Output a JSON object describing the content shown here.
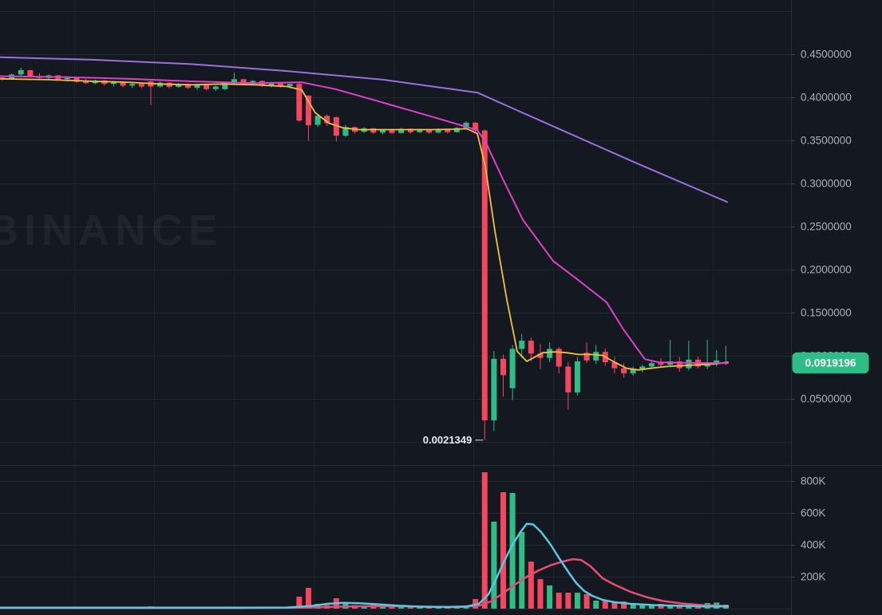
{
  "watermark": "BINANCE",
  "price_scale": {
    "labels": [
      {
        "text": "0.4500000",
        "value": 0.45
      },
      {
        "text": "0.4000000",
        "value": 0.4
      },
      {
        "text": "0.3500000",
        "value": 0.35
      },
      {
        "text": "0.3000000",
        "value": 0.3
      },
      {
        "text": "0.2500000",
        "value": 0.25
      },
      {
        "text": "0.2000000",
        "value": 0.2
      },
      {
        "text": "0.1500000",
        "value": 0.15
      },
      {
        "text": "0.1000000",
        "value": 0.1
      },
      {
        "text": "0.0500000",
        "value": 0.05
      }
    ],
    "current_price_badge": {
      "text": "0.0919196",
      "value": 0.0919196,
      "color": "#2EBD85",
      "text_color": "#FFFFFF"
    }
  },
  "volume_scale": {
    "labels": [
      {
        "text": "800K",
        "value": 800
      },
      {
        "text": "600K",
        "value": 600
      },
      {
        "text": "400K",
        "value": 400
      },
      {
        "text": "200K",
        "value": 200
      }
    ]
  },
  "annotations": {
    "low_label": {
      "text": "0.0021349",
      "value": 0.0021349,
      "candle_index": 52
    }
  },
  "colors": {
    "background": "#141821",
    "grid_vertical": "#1b212b",
    "grid_horizontal": "#1e2832",
    "pane_border": "#2a2f3a",
    "tick": "#3a4150",
    "up": "#2EBD85",
    "down": "#F6465D",
    "ma_fast_yellow": "#EFC13D",
    "ma_mid_magenta": "#E03FC8",
    "ma_slow_purple": "#9C6FDE",
    "vol_ma_fast_cyan": "#58C7E3",
    "vol_ma_slow_rose": "#E94D72",
    "badge": "#2EBD85",
    "label_text": "#aab0bc"
  },
  "chart_data": {
    "type": "candlestick_with_volume",
    "title": "",
    "price_axis_visible_range": [
      0.0,
      0.5
    ],
    "volume_axis_visible_range_k": [
      0,
      900
    ],
    "legend_position": "none",
    "grid": true,
    "gridlines": {
      "vertical_x": [
        93,
        193,
        293,
        393,
        493,
        593,
        693,
        793,
        893
      ],
      "horizontal_prices": [
        0.5,
        0.45,
        0.4,
        0.35,
        0.3,
        0.25,
        0.2,
        0.15,
        0.1,
        0.05,
        0.0
      ],
      "volume_levels_k": [
        800,
        600,
        400,
        200
      ]
    },
    "candles_format": [
      "open",
      "high",
      "low",
      "close",
      "volume_k"
    ],
    "candles": [
      [
        0.423,
        0.4255,
        0.4195,
        0.4215,
        10
      ],
      [
        0.4215,
        0.4275,
        0.4205,
        0.4265,
        8
      ],
      [
        0.4265,
        0.4345,
        0.425,
        0.4315,
        9
      ],
      [
        0.4315,
        0.432,
        0.4235,
        0.4245,
        8
      ],
      [
        0.4245,
        0.428,
        0.4215,
        0.4225,
        6
      ],
      [
        0.4225,
        0.4265,
        0.4205,
        0.4255,
        7
      ],
      [
        0.4255,
        0.426,
        0.4195,
        0.421,
        6
      ],
      [
        0.421,
        0.4245,
        0.4185,
        0.4235,
        6
      ],
      [
        0.4235,
        0.424,
        0.4165,
        0.418,
        8
      ],
      [
        0.418,
        0.4215,
        0.4155,
        0.4165,
        6
      ],
      [
        0.4165,
        0.4205,
        0.415,
        0.4195,
        6
      ],
      [
        0.4195,
        0.42,
        0.4135,
        0.4155,
        7
      ],
      [
        0.4155,
        0.419,
        0.4125,
        0.4175,
        6
      ],
      [
        0.4175,
        0.418,
        0.4115,
        0.4135,
        6
      ],
      [
        0.4135,
        0.417,
        0.411,
        0.4155,
        5
      ],
      [
        0.4155,
        0.4165,
        0.4105,
        0.4125,
        6
      ],
      [
        0.4185,
        0.419,
        0.391,
        0.4125,
        14
      ],
      [
        0.4125,
        0.4185,
        0.4115,
        0.417,
        6
      ],
      [
        0.417,
        0.4175,
        0.4105,
        0.412,
        5
      ],
      [
        0.412,
        0.4165,
        0.411,
        0.4155,
        5
      ],
      [
        0.4155,
        0.416,
        0.4095,
        0.411,
        6
      ],
      [
        0.411,
        0.4155,
        0.4085,
        0.4145,
        5
      ],
      [
        0.4145,
        0.415,
        0.408,
        0.4095,
        5
      ],
      [
        0.4095,
        0.4135,
        0.4075,
        0.4125,
        5
      ],
      [
        0.4095,
        0.4185,
        0.4085,
        0.4165,
        7
      ],
      [
        0.4165,
        0.4285,
        0.4145,
        0.421,
        9
      ],
      [
        0.421,
        0.4215,
        0.414,
        0.4155,
        6
      ],
      [
        0.4155,
        0.42,
        0.4135,
        0.419,
        6
      ],
      [
        0.419,
        0.4195,
        0.412,
        0.4135,
        6
      ],
      [
        0.4135,
        0.418,
        0.4115,
        0.4165,
        5
      ],
      [
        0.4165,
        0.417,
        0.411,
        0.413,
        6
      ],
      [
        0.413,
        0.4165,
        0.4105,
        0.4155,
        8
      ],
      [
        0.4155,
        0.4165,
        0.3715,
        0.373,
        75
      ],
      [
        0.402,
        0.4025,
        0.3495,
        0.3675,
        130
      ],
      [
        0.368,
        0.381,
        0.3655,
        0.3785,
        30
      ],
      [
        0.3785,
        0.38,
        0.3665,
        0.37,
        22
      ],
      [
        0.377,
        0.3775,
        0.349,
        0.3555,
        65
      ],
      [
        0.3555,
        0.368,
        0.354,
        0.3655,
        40
      ],
      [
        0.3655,
        0.366,
        0.358,
        0.36,
        22
      ],
      [
        0.36,
        0.3655,
        0.3585,
        0.364,
        18
      ],
      [
        0.364,
        0.3645,
        0.3575,
        0.359,
        25
      ],
      [
        0.359,
        0.3635,
        0.357,
        0.3625,
        15
      ],
      [
        0.3625,
        0.363,
        0.3575,
        0.3585,
        12
      ],
      [
        0.3585,
        0.3645,
        0.358,
        0.3635,
        18
      ],
      [
        0.3635,
        0.364,
        0.358,
        0.3595,
        12
      ],
      [
        0.3595,
        0.3635,
        0.3585,
        0.3625,
        8
      ],
      [
        0.3625,
        0.363,
        0.3575,
        0.359,
        6
      ],
      [
        0.359,
        0.364,
        0.3585,
        0.363,
        8
      ],
      [
        0.363,
        0.3635,
        0.358,
        0.3595,
        6
      ],
      [
        0.3595,
        0.3655,
        0.359,
        0.3645,
        8
      ],
      [
        0.3645,
        0.372,
        0.363,
        0.3705,
        12
      ],
      [
        0.3705,
        0.3715,
        0.3595,
        0.3615,
        60
      ],
      [
        0.3615,
        0.3625,
        0.0021349,
        0.0251,
        855
      ],
      [
        0.0251,
        0.1055,
        0.0125,
        0.0965,
        545
      ],
      [
        0.0965,
        0.1015,
        0.0525,
        0.0775,
        730
      ],
      [
        0.0625,
        0.1125,
        0.0485,
        0.108,
        725
      ],
      [
        0.108,
        0.1255,
        0.0975,
        0.1175,
        480
      ],
      [
        0.1175,
        0.121,
        0.0935,
        0.1025,
        295
      ],
      [
        0.1025,
        0.1135,
        0.0845,
        0.0975,
        185
      ],
      [
        0.0975,
        0.1155,
        0.0925,
        0.108,
        145
      ],
      [
        0.108,
        0.11,
        0.0795,
        0.0875,
        100
      ],
      [
        0.0875,
        0.0925,
        0.0375,
        0.0575,
        100
      ],
      [
        0.0575,
        0.0985,
        0.054,
        0.0935,
        100
      ],
      [
        0.1035,
        0.1155,
        0.0915,
        0.0945,
        90
      ],
      [
        0.0945,
        0.1125,
        0.0905,
        0.1045,
        50
      ],
      [
        0.1045,
        0.1085,
        0.0885,
        0.0925,
        55
      ],
      [
        0.0925,
        0.0985,
        0.0795,
        0.0855,
        40
      ],
      [
        0.0855,
        0.0915,
        0.0745,
        0.0795,
        45
      ],
      [
        0.0795,
        0.0875,
        0.077,
        0.0845,
        35
      ],
      [
        0.0845,
        0.0895,
        0.0805,
        0.0875,
        30
      ],
      [
        0.0875,
        0.0955,
        0.0845,
        0.0915,
        25
      ],
      [
        0.0915,
        0.0975,
        0.0865,
        0.0895,
        30
      ],
      [
        0.0895,
        0.1185,
        0.0875,
        0.0935,
        20
      ],
      [
        0.0935,
        0.0985,
        0.0815,
        0.0855,
        18
      ],
      [
        0.0855,
        0.1175,
        0.083,
        0.0955,
        15
      ],
      [
        0.0955,
        0.099,
        0.0855,
        0.0875,
        12
      ],
      [
        0.0875,
        0.1185,
        0.0845,
        0.0905,
        35
      ],
      [
        0.0905,
        0.1065,
        0.0875,
        0.0945,
        38
      ],
      [
        0.0915,
        0.1115,
        0.089,
        0.0919196,
        25
      ]
    ],
    "overlays": {
      "ma_fast_yellow": [
        [
          0,
          0.4215
        ],
        [
          60,
          0.4205
        ],
        [
          120,
          0.4185
        ],
        [
          160,
          0.4175
        ],
        [
          200,
          0.4155
        ],
        [
          240,
          0.4145
        ],
        [
          280,
          0.4155
        ],
        [
          320,
          0.4145
        ],
        [
          360,
          0.4125
        ],
        [
          378,
          0.4085
        ],
        [
          395,
          0.382
        ],
        [
          412,
          0.37
        ],
        [
          430,
          0.3645
        ],
        [
          450,
          0.3625
        ],
        [
          500,
          0.3625
        ],
        [
          540,
          0.3625
        ],
        [
          570,
          0.363
        ],
        [
          585,
          0.3635
        ],
        [
          598,
          0.358
        ],
        [
          608,
          0.32
        ],
        [
          620,
          0.245
        ],
        [
          635,
          0.165
        ],
        [
          648,
          0.105
        ],
        [
          660,
          0.0935
        ],
        [
          668,
          0.0975
        ],
        [
          680,
          0.1035
        ],
        [
          695,
          0.1045
        ],
        [
          710,
          0.1035
        ],
        [
          725,
          0.1015
        ],
        [
          740,
          0.1015
        ],
        [
          755,
          0.1005
        ],
        [
          770,
          0.0925
        ],
        [
          785,
          0.0855
        ],
        [
          800,
          0.0835
        ],
        [
          815,
          0.0855
        ],
        [
          835,
          0.0875
        ],
        [
          855,
          0.0885
        ],
        [
          875,
          0.0895
        ],
        [
          895,
          0.0905
        ],
        [
          912,
          0.0925
        ]
      ],
      "ma_mid_magenta": [
        [
          0,
          0.4245
        ],
        [
          80,
          0.4235
        ],
        [
          160,
          0.4215
        ],
        [
          240,
          0.4185
        ],
        [
          320,
          0.4165
        ],
        [
          378,
          0.4175
        ],
        [
          420,
          0.4095
        ],
        [
          470,
          0.3965
        ],
        [
          530,
          0.3805
        ],
        [
          598,
          0.362
        ],
        [
          610,
          0.345
        ],
        [
          630,
          0.305
        ],
        [
          655,
          0.258
        ],
        [
          693,
          0.21
        ],
        [
          727,
          0.186
        ],
        [
          760,
          0.162
        ],
        [
          780,
          0.132
        ],
        [
          797,
          0.11
        ],
        [
          808,
          0.096
        ],
        [
          825,
          0.0925
        ],
        [
          860,
          0.0918
        ],
        [
          912,
          0.0915
        ]
      ],
      "ma_slow_purple": [
        [
          0,
          0.4465
        ],
        [
          120,
          0.4435
        ],
        [
          240,
          0.4385
        ],
        [
          360,
          0.4305
        ],
        [
          480,
          0.4205
        ],
        [
          598,
          0.4055
        ],
        [
          700,
          0.3635
        ],
        [
          800,
          0.3225
        ],
        [
          911,
          0.2785
        ]
      ]
    },
    "volume_ma": {
      "fast_cyan": [
        [
          0,
          6
        ],
        [
          100,
          6
        ],
        [
          200,
          6
        ],
        [
          300,
          6
        ],
        [
          360,
          7
        ],
        [
          390,
          16
        ],
        [
          410,
          30
        ],
        [
          430,
          36
        ],
        [
          450,
          34
        ],
        [
          470,
          28
        ],
        [
          500,
          18
        ],
        [
          530,
          12
        ],
        [
          560,
          10
        ],
        [
          585,
          14
        ],
        [
          600,
          30
        ],
        [
          612,
          90
        ],
        [
          622,
          190
        ],
        [
          632,
          300
        ],
        [
          642,
          400
        ],
        [
          652,
          480
        ],
        [
          660,
          532
        ],
        [
          668,
          528
        ],
        [
          678,
          480
        ],
        [
          690,
          400
        ],
        [
          700,
          320
        ],
        [
          712,
          230
        ],
        [
          722,
          160
        ],
        [
          732,
          110
        ],
        [
          742,
          80
        ],
        [
          755,
          55
        ],
        [
          770,
          40
        ],
        [
          790,
          30
        ],
        [
          820,
          22
        ],
        [
          850,
          18
        ],
        [
          880,
          14
        ],
        [
          912,
          14
        ]
      ],
      "slow_rose": [
        [
          0,
          4
        ],
        [
          150,
          4
        ],
        [
          300,
          4
        ],
        [
          380,
          6
        ],
        [
          420,
          12
        ],
        [
          460,
          15
        ],
        [
          500,
          15
        ],
        [
          540,
          12
        ],
        [
          575,
          10
        ],
        [
          600,
          18
        ],
        [
          615,
          45
        ],
        [
          630,
          95
        ],
        [
          645,
          150
        ],
        [
          660,
          200
        ],
        [
          675,
          240
        ],
        [
          690,
          272
        ],
        [
          705,
          295
        ],
        [
          718,
          310
        ],
        [
          728,
          305
        ],
        [
          740,
          265
        ],
        [
          755,
          190
        ],
        [
          770,
          150
        ],
        [
          790,
          105
        ],
        [
          810,
          72
        ],
        [
          830,
          48
        ],
        [
          855,
          32
        ],
        [
          880,
          22
        ],
        [
          912,
          16
        ]
      ]
    }
  }
}
